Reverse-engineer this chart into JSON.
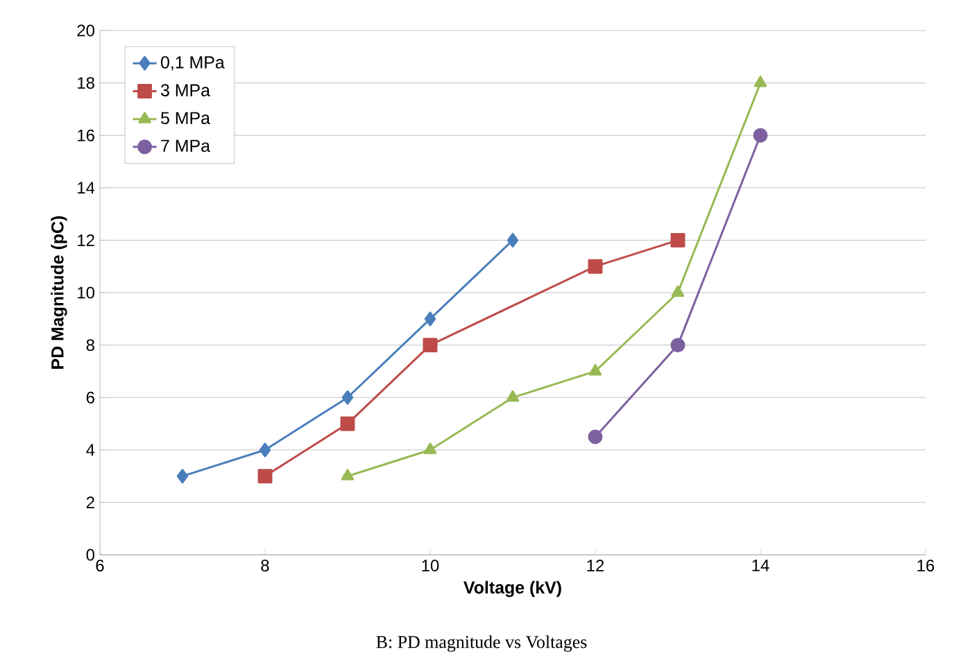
{
  "chart_data": {
    "type": "line",
    "xlabel": "Voltage (kV)",
    "ylabel": "PD Magnitude (pC)",
    "xlim": [
      6,
      16
    ],
    "xticks": [
      6,
      8,
      10,
      12,
      14,
      16
    ],
    "ylim": [
      0,
      20
    ],
    "yticks": [
      0,
      2,
      4,
      6,
      8,
      10,
      12,
      14,
      16,
      18,
      20
    ],
    "grid": "y",
    "legend": "top left",
    "annotations": [
      "B: PD magnitude vs Voltages"
    ],
    "series": [
      {
        "name": "0,1 MPa",
        "color": "#4a7ebb",
        "marker": "diamond",
        "x": [
          7,
          8,
          9,
          10,
          11
        ],
        "values": [
          3,
          4,
          6,
          9,
          12
        ]
      },
      {
        "name": "3 MPa",
        "color": "#be4b48",
        "marker": "square",
        "x": [
          8,
          9,
          10,
          12,
          13
        ],
        "values": [
          3,
          5,
          8,
          11,
          12
        ]
      },
      {
        "name": "5 MPa",
        "color": "#98b954",
        "marker": "triangle",
        "x": [
          9,
          10,
          11,
          12,
          13,
          14
        ],
        "values": [
          3,
          4,
          6,
          7,
          10,
          18
        ]
      },
      {
        "name": "7 MPa",
        "color": "#7d60a0",
        "marker": "circle",
        "x": [
          12,
          13,
          14
        ],
        "values": [
          4.5,
          8,
          16
        ]
      }
    ]
  }
}
